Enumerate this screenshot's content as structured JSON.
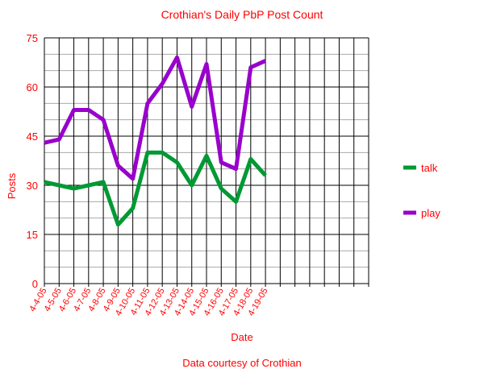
{
  "chart_data": {
    "type": "line",
    "title": "Crothian's Daily PbP Post Count",
    "xlabel": "Date",
    "ylabel": "Posts",
    "footer": "Data courtesy of Crothian",
    "ylim": [
      0,
      75
    ],
    "y_ticks": [
      "0",
      "15",
      "30",
      "45",
      "60",
      "75"
    ],
    "categories": [
      "4-4-05",
      "4-5-05",
      "4-6-05",
      "4-7-05",
      "4-8-05",
      "4-9-05",
      "4-10-05",
      "4-11-05",
      "4-12-05",
      "4-13-05",
      "4-14-05",
      "4-15-05",
      "4-16-05",
      "4-17-05",
      "4-18-05",
      "4-19-05"
    ],
    "grid": true,
    "legend_position": "right",
    "series": [
      {
        "name": "talk",
        "color": "#009933",
        "values": [
          31,
          30,
          29,
          30,
          31,
          18,
          23,
          40,
          40,
          37,
          30,
          39,
          29,
          25,
          38,
          33
        ]
      },
      {
        "name": "play",
        "color": "#9900cc",
        "values": [
          43,
          44,
          53,
          53,
          50,
          36,
          32,
          55,
          61,
          69,
          54,
          67,
          37,
          35,
          66,
          68
        ]
      }
    ]
  },
  "colors": {
    "text": "#ff0000",
    "grid_major": "#000000",
    "grid_minor": "#aaaaaa"
  }
}
